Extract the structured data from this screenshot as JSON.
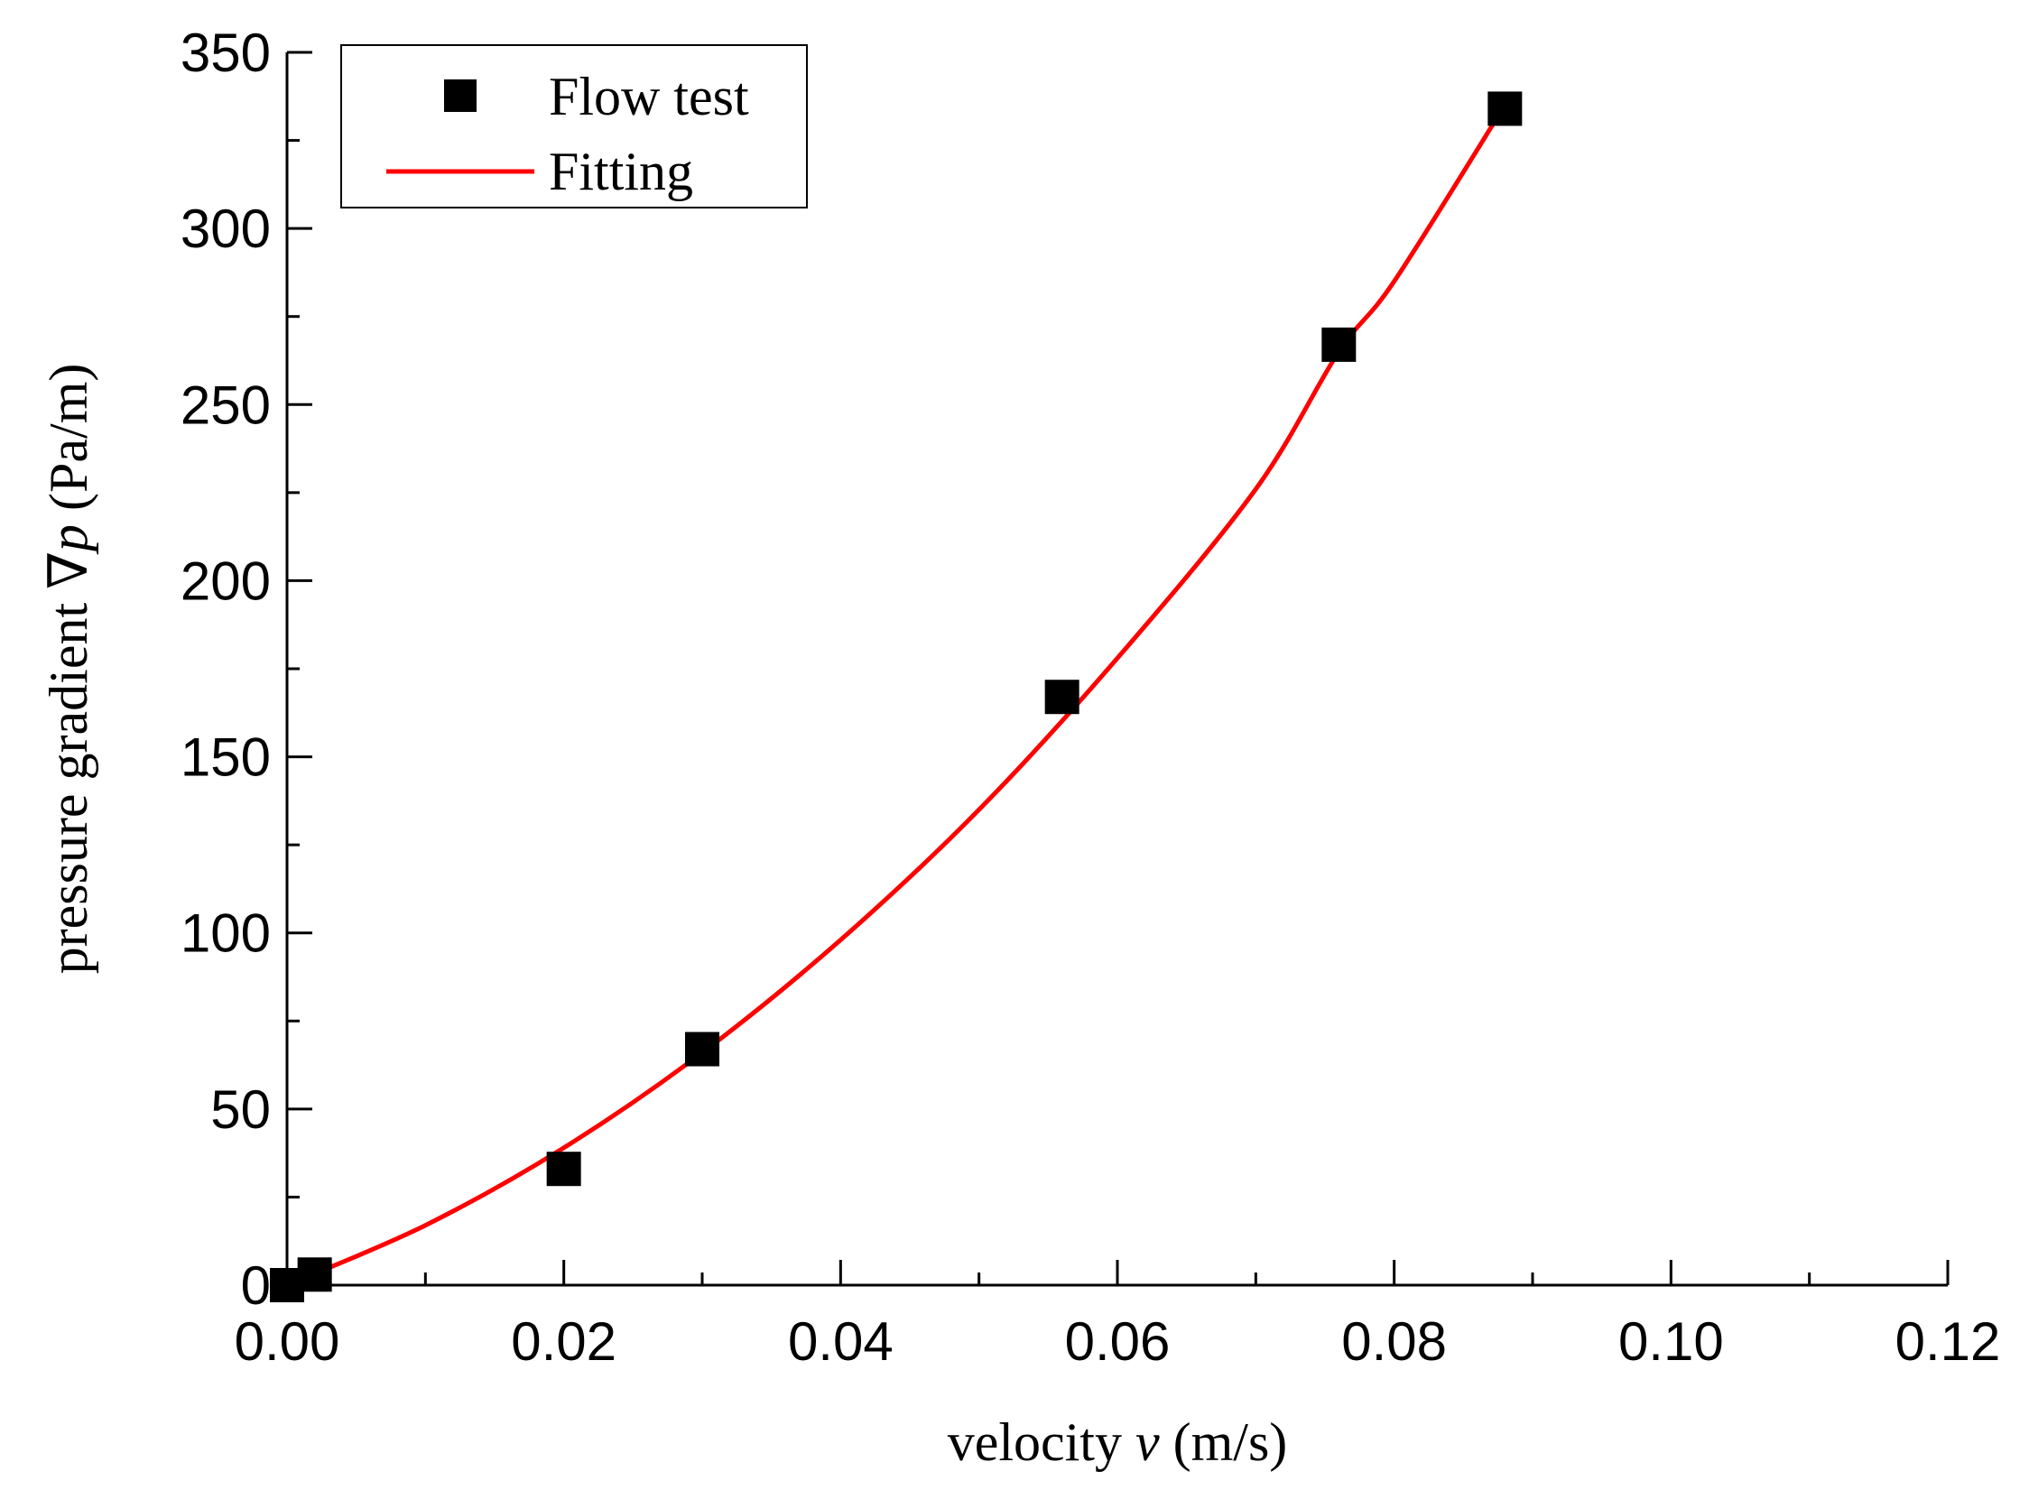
{
  "chart_data": {
    "type": "scatter",
    "title": "",
    "xlabel": "velocity v (m/s)",
    "xlabel_parts": {
      "prefix": "velocity ",
      "var": "v",
      "suffix": " (m/s)"
    },
    "ylabel": "pressure gradient ∇p (Pa/m)",
    "ylabel_parts": {
      "prefix": "pressure gradient ∇",
      "var": "p",
      "suffix": " (Pa/m)"
    },
    "xlim": [
      0,
      0.12
    ],
    "ylim": [
      0,
      350
    ],
    "xticks": [
      0.0,
      0.02,
      0.04,
      0.06,
      0.08,
      0.1,
      0.12
    ],
    "xtick_labels": [
      "0.00",
      "0.02",
      "0.04",
      "0.06",
      "0.08",
      "0.10",
      "0.12"
    ],
    "yticks": [
      0,
      50,
      100,
      150,
      200,
      250,
      300,
      350
    ],
    "ytick_labels": [
      "0",
      "50",
      "100",
      "150",
      "200",
      "250",
      "300",
      "350"
    ],
    "legend_position": "top-left",
    "series": [
      {
        "name": "Flow test",
        "kind": "scatter",
        "marker": "square",
        "color": "#000000",
        "x": [
          0.0,
          0.002,
          0.02,
          0.03,
          0.056,
          0.076,
          0.088
        ],
        "y": [
          0,
          3,
          33,
          67,
          167,
          267,
          334
        ]
      },
      {
        "name": "Fitting",
        "kind": "line",
        "color": "#ff0000",
        "x": [
          0.0,
          0.01,
          0.02,
          0.03,
          0.04,
          0.05,
          0.06,
          0.07,
          0.076,
          0.08,
          0.088
        ],
        "y": [
          0,
          17,
          39,
          66,
          98,
          135,
          178,
          226,
          265,
          285,
          335
        ]
      }
    ]
  }
}
